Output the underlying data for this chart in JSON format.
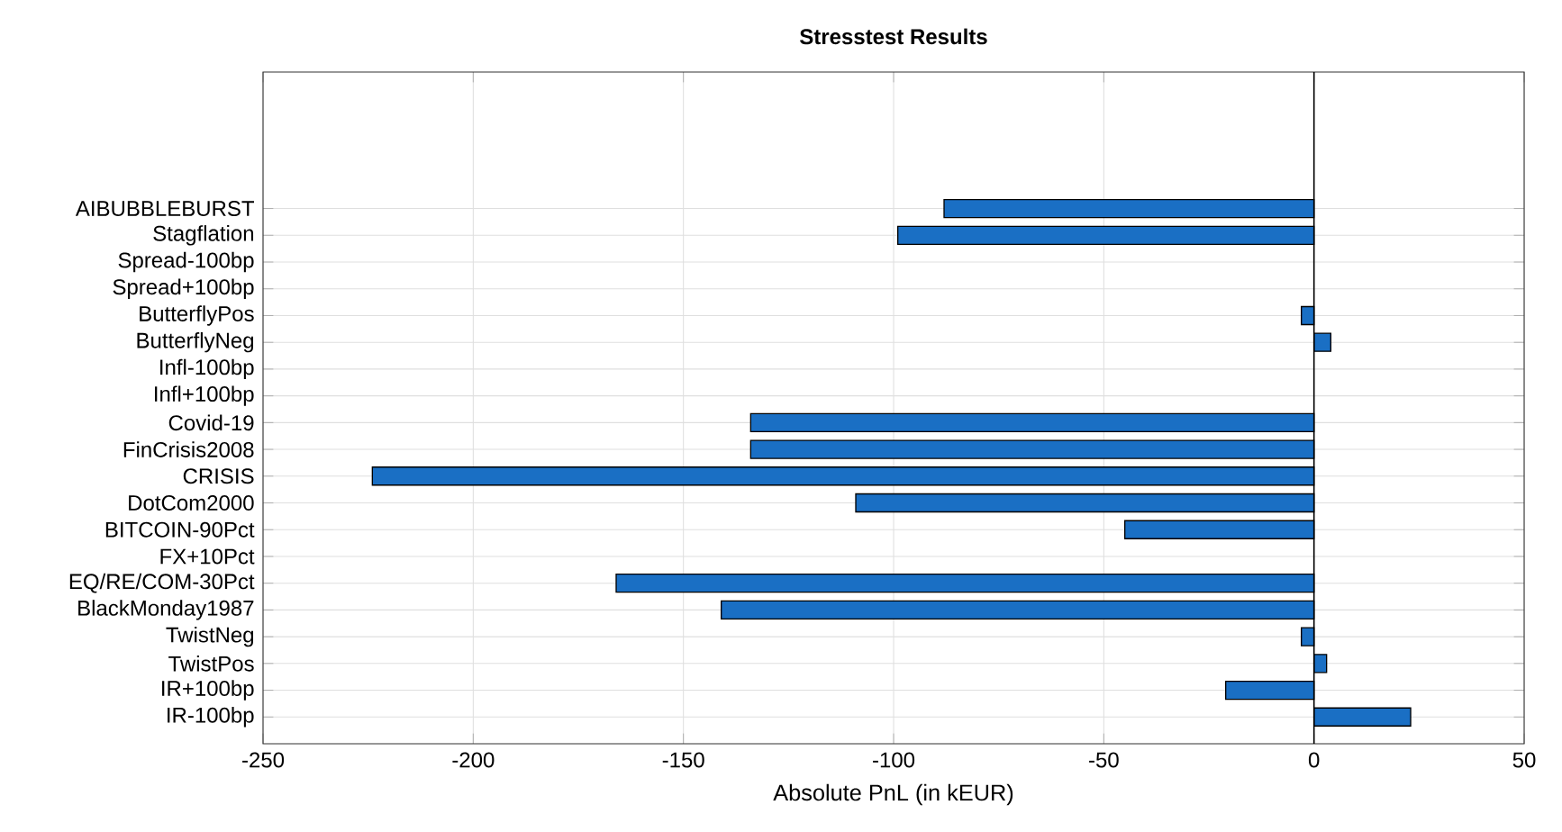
{
  "chart_data": {
    "type": "bar",
    "orientation": "horizontal",
    "title": "Stresstest Results",
    "xlabel": "Absolute PnL (in kEUR)",
    "categories": [
      "AIBUBBLEBURST",
      "Stagflation",
      "Spread-100bp",
      "Spread+100bp",
      "ButterflyPos",
      "ButterflyNeg",
      "Infl-100bp",
      "Infl+100bp",
      "Covid-19",
      "FinCrisis2008",
      "CRISIS",
      "DotCom2000",
      "BITCOIN-90Pct",
      "FX+10Pct",
      "EQ/RE/COM-30Pct",
      "BlackMonday1987",
      "TwistNeg",
      "TwistPos",
      "IR+100bp",
      "IR-100bp"
    ],
    "values": [
      -88,
      -99,
      0,
      0,
      -3,
      4,
      0,
      0,
      -134,
      -134,
      -224,
      -109,
      -45,
      0,
      -166,
      -141,
      -3,
      3,
      -21,
      23
    ],
    "color": "#1a6fc4",
    "xlim": [
      -250,
      50
    ],
    "xticks": [
      -250,
      -200,
      -150,
      -100,
      -50,
      0,
      50
    ],
    "grid": true
  }
}
